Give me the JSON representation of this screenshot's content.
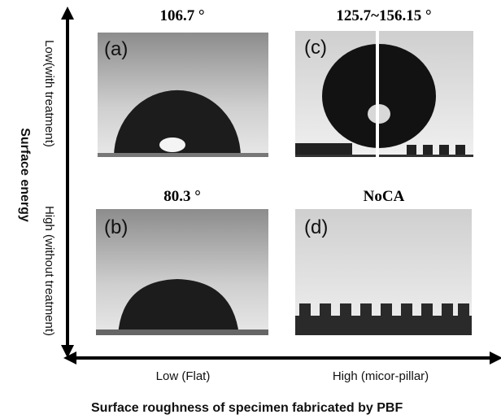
{
  "axes": {
    "y_title": "Surface energy",
    "y_low": "Low(with treatment)",
    "y_high": "High (without treatment)",
    "x_low": "Low (Flat)",
    "x_high": "High (micor-pillar)",
    "x_title": "Surface roughness of specimen fabricated by PBF"
  },
  "panels": [
    {
      "tag": "(a)",
      "title": "106.7 °"
    },
    {
      "tag": "(b)",
      "title": "80.3 °"
    },
    {
      "tag": "(c)",
      "title": "125.7~156.15 °"
    },
    {
      "tag": "(d)",
      "title": "NoCA"
    }
  ]
}
